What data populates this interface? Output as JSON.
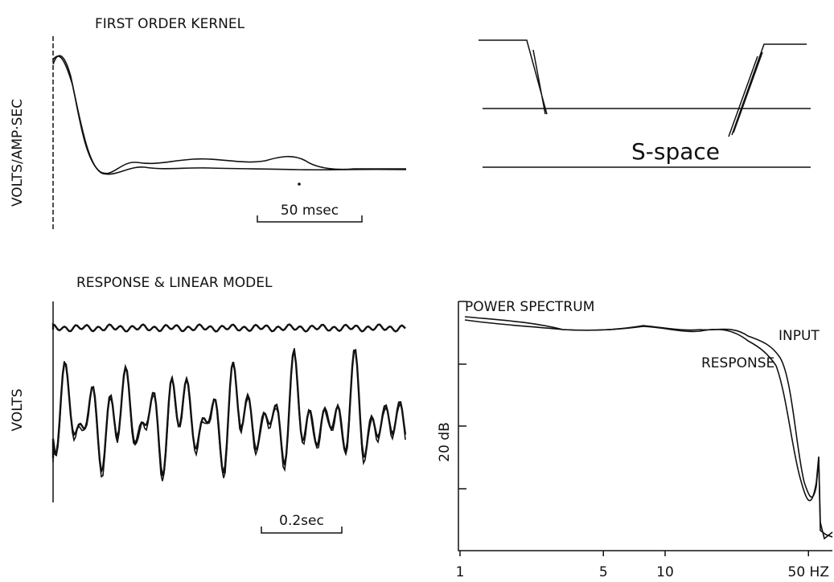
{
  "panels": [
    {
      "title": "FIRST ORDER KERNEL",
      "y_label": "VOLTS/AMP·SEC",
      "scale_bar": "50 msec"
    },
    {
      "label": "S-space"
    },
    {
      "title": "RESPONSE & LINEAR MODEL",
      "y_label": "VOLTS",
      "scale_bar": "0.2sec"
    },
    {
      "title": "POWER SPECTRUM",
      "y_label": "20 dB",
      "x_log": true,
      "xticks": [
        1,
        5,
        10,
        {
          "value": 50,
          "label": "50 HZ"
        }
      ],
      "series_labels": [
        "INPUT",
        "RESPONSE"
      ]
    }
  ]
}
